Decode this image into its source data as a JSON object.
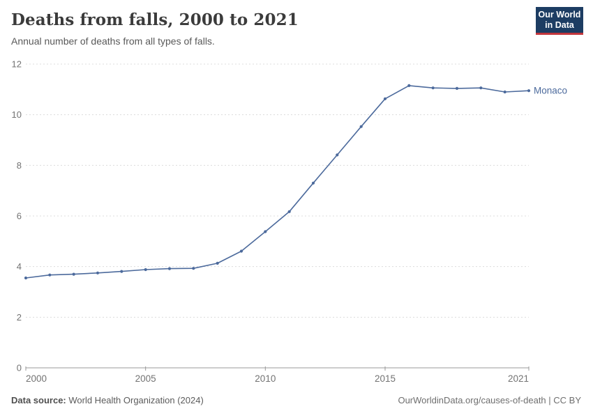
{
  "header": {
    "title": "Deaths from falls, 2000 to 2021",
    "subtitle": "Annual number of deaths from all types of falls."
  },
  "logo": {
    "line1": "Our World",
    "line2": "in Data"
  },
  "chart_data": {
    "type": "line",
    "title": "Deaths from falls, 2000 to 2021",
    "xlabel": "",
    "ylabel": "",
    "x": [
      2000,
      2001,
      2002,
      2003,
      2004,
      2005,
      2006,
      2007,
      2008,
      2009,
      2010,
      2011,
      2012,
      2013,
      2014,
      2015,
      2016,
      2017,
      2018,
      2019,
      2020,
      2021
    ],
    "series": [
      {
        "name": "Monaco",
        "color": "#4C6A9C",
        "values": [
          3.55,
          3.67,
          3.7,
          3.75,
          3.81,
          3.88,
          3.92,
          3.93,
          4.13,
          4.61,
          5.38,
          6.17,
          7.3,
          8.41,
          9.53,
          10.63,
          11.15,
          11.06,
          11.04,
          11.06,
          10.9,
          10.95
        ]
      }
    ],
    "ylim": [
      0,
      12
    ],
    "yticks": [
      0,
      2,
      4,
      6,
      8,
      10,
      12
    ],
    "xticks": [
      2000,
      2005,
      2010,
      2015,
      2021
    ],
    "grid": true,
    "grid_style": "dashed",
    "legend_position": "end-of-line-label"
  },
  "footer": {
    "source_label": "Data source:",
    "source_value": " World Health Organization (2024)",
    "attribution": "OurWorldinData.org/causes-of-death | CC BY"
  },
  "colors": {
    "line": "#4C6A9C",
    "grid": "#dcdcdc",
    "axis": "#999999",
    "tick_label": "#737373",
    "title": "#3b3b3b",
    "subtitle": "#595959",
    "logo_bg": "#1d3d63",
    "logo_red": "#c2363c"
  }
}
